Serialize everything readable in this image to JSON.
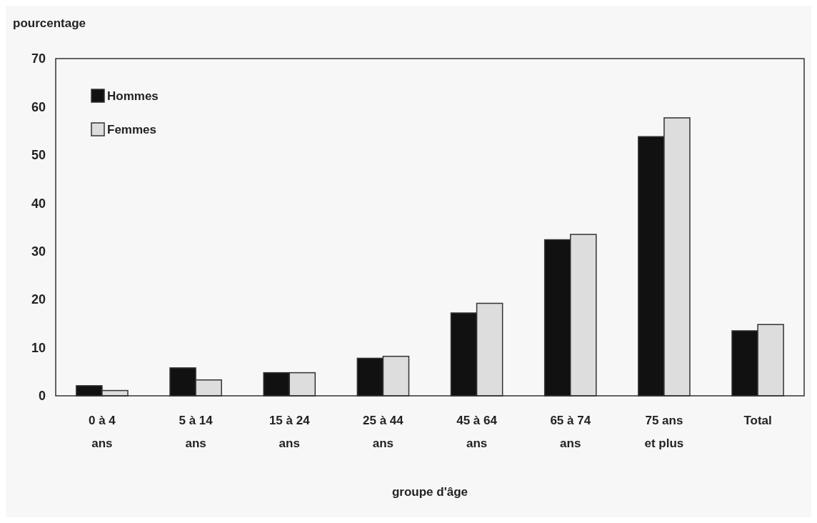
{
  "chart_data": {
    "type": "bar",
    "ylabel": "pourcentage",
    "xlabel": "groupe d'âge",
    "categories": [
      "0 à 4\nans",
      "5 à 14\nans",
      "15 à 24\nans",
      "25 à 44\nans",
      "45 à 64\nans",
      "65 à 74\nans",
      "75 ans\net plus",
      "Total"
    ],
    "series": [
      {
        "name": "Hommes",
        "color": "#111111",
        "values": [
          2.1,
          5.8,
          4.8,
          7.8,
          17.2,
          32.4,
          53.8,
          13.5
        ]
      },
      {
        "name": "Femmes",
        "color": "#dddddd",
        "values": [
          1.1,
          3.3,
          4.8,
          8.2,
          19.2,
          33.5,
          57.7,
          14.8
        ]
      }
    ],
    "ylim": [
      0,
      70
    ],
    "yticks": [
      0,
      10,
      20,
      30,
      40,
      50,
      60,
      70
    ],
    "grid": false,
    "legend": "top left"
  }
}
